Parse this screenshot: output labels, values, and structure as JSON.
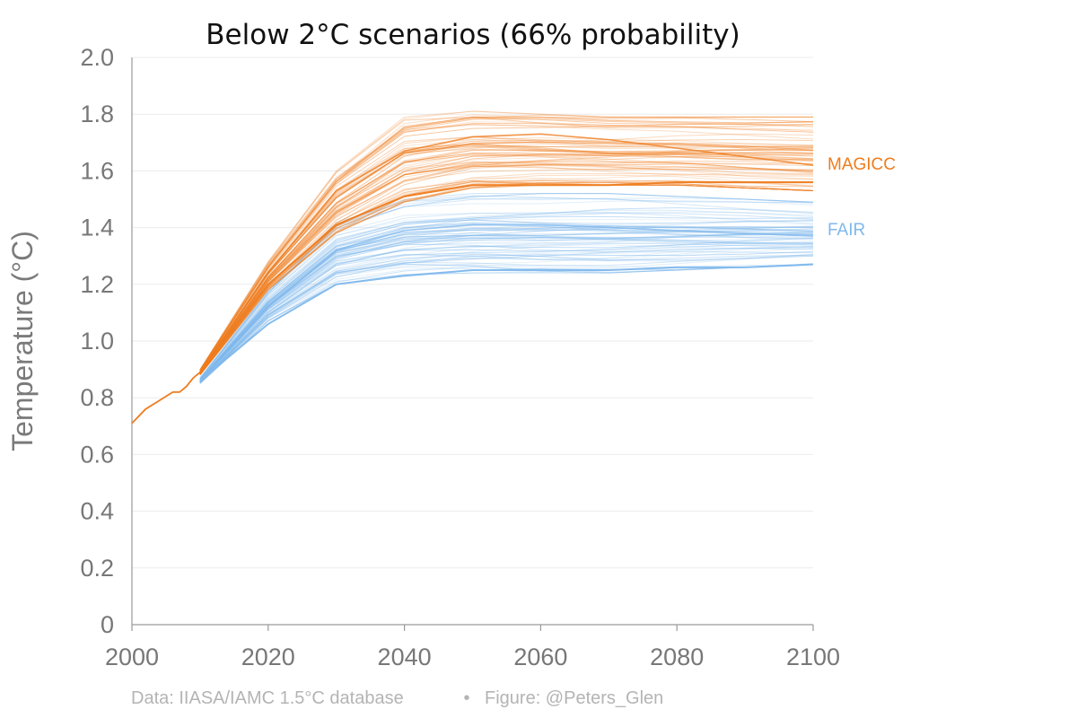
{
  "chart_data": {
    "type": "line",
    "title": "Below 2°C scenarios (66% probability)",
    "ylabel": "Temperature (°C)",
    "xlabel": "",
    "xlim": [
      2000,
      2100
    ],
    "ylim": [
      0,
      2.0
    ],
    "x_ticks": [
      "2000",
      "2020",
      "2040",
      "2060",
      "2080",
      "2100"
    ],
    "y_ticks": [
      "0",
      "0.2",
      "0.4",
      "0.6",
      "0.8",
      "1.0",
      "1.2",
      "1.4",
      "1.6",
      "1.8",
      "2.0"
    ],
    "grid": true,
    "colors": {
      "MAGICC": "#ee7c1e",
      "FAIR": "#7fb8ec"
    },
    "historical": {
      "x": [
        2000,
        2002,
        2004,
        2006,
        2007,
        2008,
        2009,
        2010
      ],
      "y": [
        0.71,
        0.76,
        0.79,
        0.82,
        0.82,
        0.84,
        0.87,
        0.89
      ]
    },
    "series": [
      {
        "name": "MAGICC",
        "x": [
          2010,
          2020,
          2030,
          2040,
          2050,
          2060,
          2070,
          2080,
          2090,
          2100
        ],
        "envelope_low": [
          0.88,
          1.18,
          1.38,
          1.49,
          1.54,
          1.55,
          1.55,
          1.55,
          1.54,
          1.53
        ],
        "envelope_high": [
          0.9,
          1.28,
          1.6,
          1.79,
          1.81,
          1.8,
          1.79,
          1.79,
          1.79,
          1.79
        ],
        "central": [
          0.89,
          1.24,
          1.53,
          1.67,
          1.72,
          1.73,
          1.71,
          1.68,
          1.65,
          1.62
        ],
        "highlight": [
          0.89,
          1.2,
          1.41,
          1.51,
          1.55,
          1.55,
          1.55,
          1.56,
          1.56,
          1.56
        ]
      },
      {
        "name": "FAIR",
        "x": [
          2010,
          2020,
          2030,
          2040,
          2050,
          2060,
          2070,
          2080,
          2090,
          2100
        ],
        "envelope_low": [
          0.85,
          1.07,
          1.2,
          1.23,
          1.24,
          1.24,
          1.24,
          1.25,
          1.26,
          1.27
        ],
        "envelope_high": [
          0.87,
          1.18,
          1.42,
          1.5,
          1.52,
          1.52,
          1.52,
          1.51,
          1.5,
          1.49
        ],
        "central": [
          0.86,
          1.12,
          1.32,
          1.39,
          1.41,
          1.41,
          1.4,
          1.39,
          1.38,
          1.37
        ],
        "highlight": [
          0.86,
          1.06,
          1.2,
          1.23,
          1.25,
          1.25,
          1.25,
          1.26,
          1.26,
          1.27
        ]
      }
    ],
    "footer": {
      "source": "Data: IIASA/IAMC 1.5°C database",
      "separator": "•",
      "credit": "Figure: @Peters_Glen"
    }
  }
}
